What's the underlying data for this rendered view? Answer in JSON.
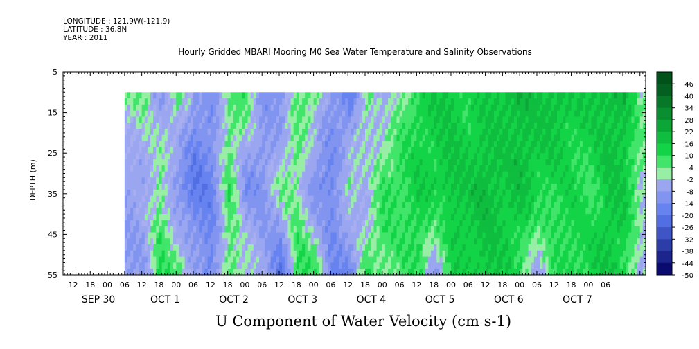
{
  "header": {
    "longitude": "LONGITUDE : 121.9W(-121.9)",
    "latitude": "LATITUDE : 36.8N",
    "year": "YEAR : 2011"
  },
  "title": "Hourly Gridded MBARI Mooring M0 Sea Water Temperature and Salinity Observations",
  "chart_data": {
    "type": "heatmap",
    "title": "U Component of Water Velocity (cm s-1)",
    "ylabel": "DEPTH (m)",
    "xlabel": "",
    "x_range_hours": [
      -15.5,
      188
    ],
    "x_origin_label": "SEP 30 00",
    "ylim": [
      55,
      5
    ],
    "y_ticks": [
      5,
      15,
      25,
      35,
      45,
      55
    ],
    "data_depth_range": [
      10,
      55
    ],
    "data_time_start_hour": 6,
    "x_hour_ticks": [
      {
        "h": -12,
        "label": "12"
      },
      {
        "h": -6,
        "label": "18"
      },
      {
        "h": 0,
        "label": "00"
      },
      {
        "h": 6,
        "label": "06"
      },
      {
        "h": 12,
        "label": "12"
      },
      {
        "h": 18,
        "label": "18"
      },
      {
        "h": 24,
        "label": "00"
      },
      {
        "h": 30,
        "label": "06"
      },
      {
        "h": 36,
        "label": "12"
      },
      {
        "h": 42,
        "label": "18"
      },
      {
        "h": 48,
        "label": "00"
      },
      {
        "h": 54,
        "label": "06"
      },
      {
        "h": 60,
        "label": "12"
      },
      {
        "h": 66,
        "label": "18"
      },
      {
        "h": 72,
        "label": "00"
      },
      {
        "h": 78,
        "label": "06"
      },
      {
        "h": 84,
        "label": "12"
      },
      {
        "h": 90,
        "label": "18"
      },
      {
        "h": 96,
        "label": "00"
      },
      {
        "h": 102,
        "label": "06"
      },
      {
        "h": 108,
        "label": "12"
      },
      {
        "h": 114,
        "label": "18"
      },
      {
        "h": 120,
        "label": "00"
      },
      {
        "h": 126,
        "label": "06"
      },
      {
        "h": 132,
        "label": "12"
      },
      {
        "h": 138,
        "label": "18"
      },
      {
        "h": 144,
        "label": "00"
      },
      {
        "h": 150,
        "label": "06"
      },
      {
        "h": 156,
        "label": "12"
      },
      {
        "h": 162,
        "label": "18"
      },
      {
        "h": 168,
        "label": "00"
      },
      {
        "h": 174,
        "label": "06"
      }
    ],
    "x_date_labels": [
      {
        "h": -9,
        "label": "SEP 30"
      },
      {
        "h": 15,
        "label": "OCT  1"
      },
      {
        "h": 39,
        "label": "OCT  2"
      },
      {
        "h": 63,
        "label": "OCT  3"
      },
      {
        "h": 87,
        "label": "OCT  4"
      },
      {
        "h": 111,
        "label": "OCT  5"
      },
      {
        "h": 135,
        "label": "OCT  6"
      },
      {
        "h": 159,
        "label": "OCT  7"
      }
    ],
    "time_columns": {
      "hour_start": 6,
      "hour_step": 6,
      "u_near_surface": [
        3,
        3,
        -8,
        6,
        -9,
        -10,
        4,
        7,
        -9,
        -12,
        6,
        6,
        -10,
        -18,
        6,
        -7,
        4,
        12,
        15,
        16,
        12,
        14,
        18,
        20,
        17,
        20,
        14,
        16,
        20,
        18,
        4
      ],
      "u_mid": [
        -8,
        -5,
        5,
        -12,
        -20,
        -15,
        8,
        -12,
        -10,
        4,
        4,
        -14,
        -14,
        5,
        -6,
        10,
        10,
        14,
        14,
        17,
        17,
        20,
        16,
        18,
        14,
        12,
        12,
        8,
        16,
        16,
        2
      ],
      "u_deep": [
        -8,
        -9,
        10,
        8,
        -4,
        -16,
        6,
        4,
        -6,
        -22,
        10,
        12,
        -14,
        -18,
        10,
        4,
        6,
        10,
        -9,
        12,
        14,
        16,
        14,
        8,
        -8,
        10,
        12,
        14,
        16,
        12,
        -4
      ]
    },
    "colorbar": {
      "levels": [
        48,
        46,
        40,
        34,
        28,
        22,
        16,
        10,
        4,
        -2,
        -8,
        -14,
        -20,
        -26,
        -32,
        -38,
        -44,
        -50
      ],
      "labels": [
        "46",
        "40",
        "34",
        "28",
        "22",
        "16",
        "10",
        "4",
        "-2",
        "-8",
        "-14",
        "-20",
        "-26",
        "-32",
        "-38",
        "-44",
        "-50"
      ]
    },
    "colors": {
      "darkest_green": "#004d1a",
      "bright_green": "#14e04a",
      "light_green": "#a8f0b0",
      "light_blue": "#a8aff0",
      "mid_blue": "#5a7af0",
      "darkest_blue": "#000060"
    }
  }
}
